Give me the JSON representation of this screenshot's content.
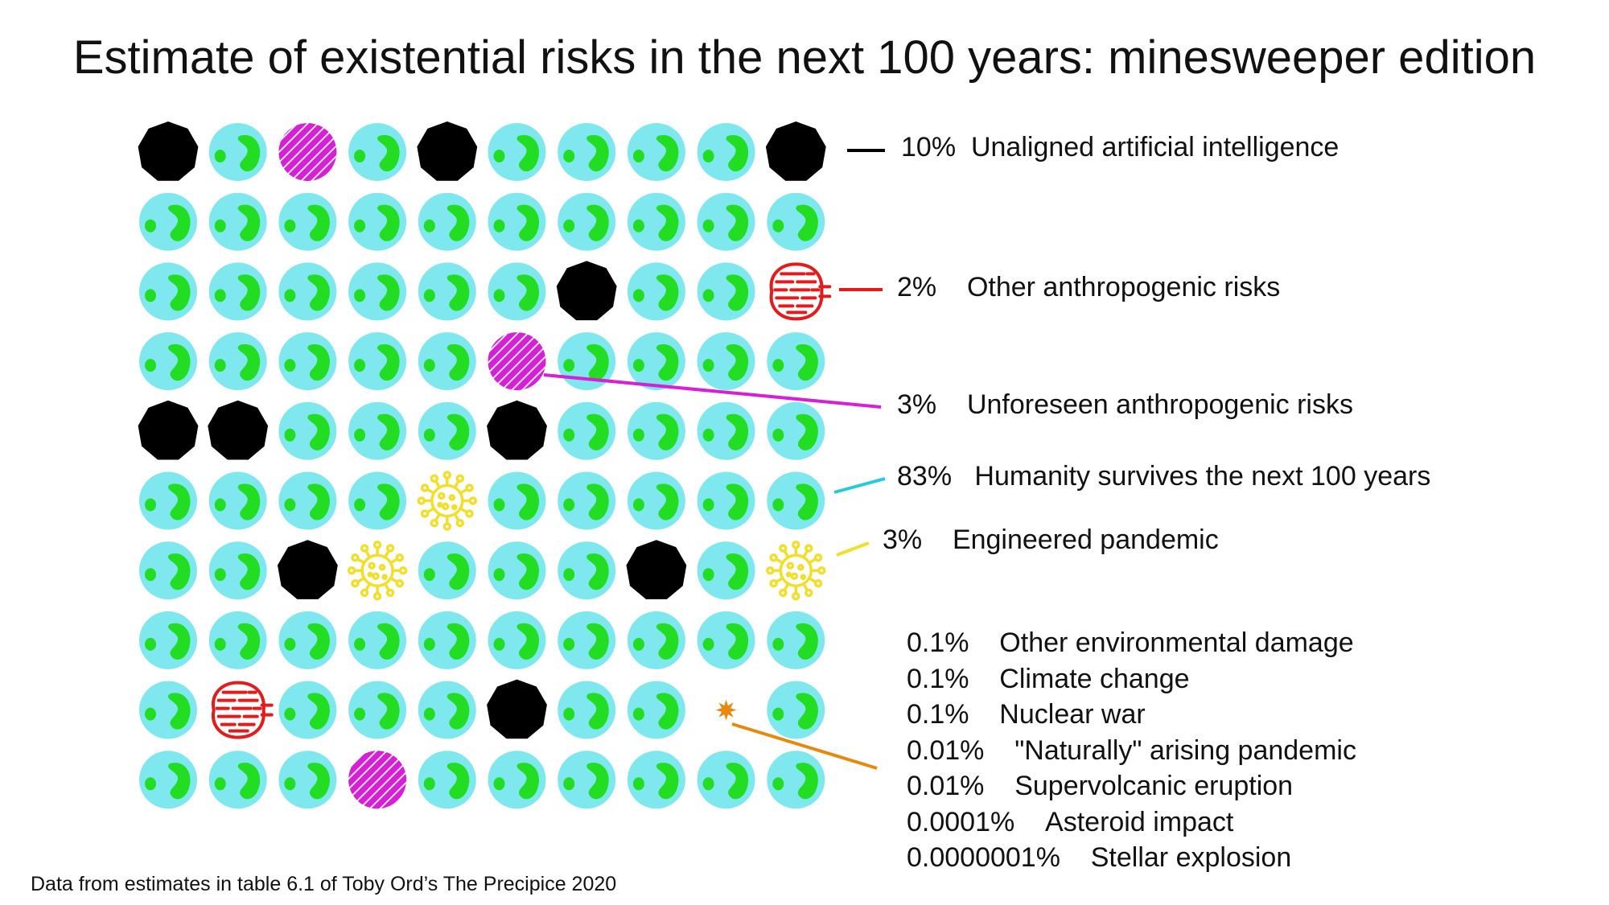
{
  "title": "Estimate of existential risks in the next 100 years: minesweeper edition",
  "footnote": "Data from estimates in table 6.1 of Toby Ord’s The Precipice 2020",
  "colors": {
    "ocean": "#7ee8ee",
    "land": "#22dd22",
    "ai": "#000000",
    "other_anthropogenic": "#e31b1b",
    "unforeseen": "#d61fd6",
    "survive": "#22ccdd",
    "pandemic": "#f3df2a",
    "small_risks": "#e8890f"
  },
  "chart_data": {
    "type": "pictogram-grid",
    "grid": {
      "rows": 10,
      "cols": 10
    },
    "cells": [
      [
        "ai",
        "earth",
        "unforeseen",
        "earth",
        "ai",
        "earth",
        "earth",
        "earth",
        "earth",
        "ai"
      ],
      [
        "earth",
        "earth",
        "earth",
        "earth",
        "earth",
        "earth",
        "earth",
        "earth",
        "earth",
        "earth"
      ],
      [
        "earth",
        "earth",
        "earth",
        "earth",
        "earth",
        "earth",
        "ai",
        "earth",
        "earth",
        "other_anthropogenic"
      ],
      [
        "earth",
        "earth",
        "earth",
        "earth",
        "earth",
        "unforeseen",
        "earth",
        "earth",
        "earth",
        "earth"
      ],
      [
        "ai",
        "ai",
        "earth",
        "earth",
        "earth",
        "ai",
        "earth",
        "earth",
        "earth",
        "earth"
      ],
      [
        "earth",
        "earth",
        "earth",
        "earth",
        "pandemic",
        "earth",
        "earth",
        "earth",
        "earth",
        "earth"
      ],
      [
        "earth",
        "earth",
        "ai",
        "pandemic",
        "earth",
        "earth",
        "earth",
        "ai",
        "earth",
        "pandemic"
      ],
      [
        "earth",
        "earth",
        "earth",
        "earth",
        "earth",
        "earth",
        "earth",
        "earth",
        "earth",
        "earth"
      ],
      [
        "earth",
        "other_anthropogenic",
        "earth",
        "earth",
        "earth",
        "ai",
        "earth",
        "earth",
        "small",
        "earth"
      ],
      [
        "earth",
        "earth",
        "earth",
        "unforeseen",
        "earth",
        "earth",
        "earth",
        "earth",
        "earth",
        "earth"
      ]
    ],
    "series": [
      {
        "key": "ai",
        "percent_label": "10%",
        "name": "Unaligned artificial intelligence",
        "value": 10
      },
      {
        "key": "other_anthropogenic",
        "percent_label": "2%",
        "name": "Other anthropogenic risks",
        "value": 2
      },
      {
        "key": "unforeseen",
        "percent_label": "3%",
        "name": "Unforeseen anthropogenic risks",
        "value": 3
      },
      {
        "key": "survive",
        "percent_label": "83%",
        "name": "Humanity survives the next 100 years",
        "value": 83
      },
      {
        "key": "pandemic",
        "percent_label": "3%",
        "name": "Engineered pandemic",
        "value": 3
      }
    ],
    "small_risks": [
      {
        "percent_label": "0.1%",
        "name": "Other environmental damage",
        "value": 0.1
      },
      {
        "percent_label": "0.1%",
        "name": "Climate change",
        "value": 0.1
      },
      {
        "percent_label": "0.1%",
        "name": "Nuclear war",
        "value": 0.1
      },
      {
        "percent_label": "0.01%",
        "name": "\"Naturally\" arising pandemic",
        "value": 0.01
      },
      {
        "percent_label": "0.01%",
        "name": "Supervolcanic eruption",
        "value": 0.01
      },
      {
        "percent_label": "0.0001%",
        "name": "Asteroid impact",
        "value": 0.0001
      },
      {
        "percent_label": "0.0000001%",
        "name": "Stellar explosion",
        "value": 1e-07
      }
    ]
  }
}
